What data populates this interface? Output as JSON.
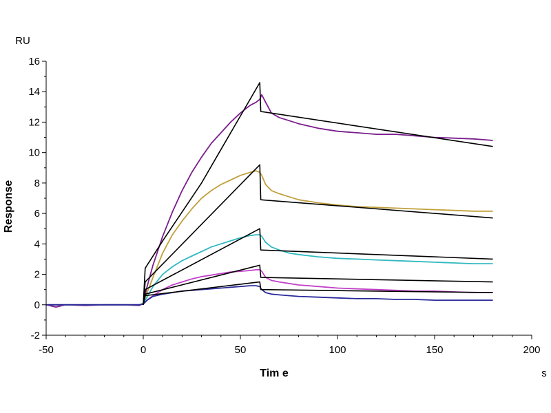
{
  "chart_data": {
    "type": "line",
    "xlabel": "Tim e",
    "ylabel": "Response",
    "x_unit": "s",
    "y_unit": "RU",
    "xlim": [
      -50,
      200
    ],
    "ylim": [
      -2,
      16
    ],
    "x_ticks": [
      -50,
      0,
      50,
      100,
      150,
      200
    ],
    "y_ticks": [
      -2,
      0,
      2,
      4,
      6,
      8,
      10,
      12,
      14,
      16
    ],
    "grid": false,
    "series": [
      {
        "color": "#7a1e8c",
        "kind": "measured",
        "x": [
          -50,
          -45,
          -40,
          -30,
          -20,
          -10,
          -2,
          0,
          2,
          5,
          10,
          15,
          20,
          25,
          30,
          35,
          40,
          45,
          50,
          55,
          58,
          60,
          61,
          63,
          66,
          70,
          75,
          80,
          90,
          100,
          110,
          120,
          130,
          140,
          150,
          160,
          170,
          180
        ],
        "y": [
          0,
          -0.15,
          0,
          -0.05,
          0,
          0,
          -0.05,
          0.1,
          1.2,
          2.6,
          4.5,
          6.1,
          7.5,
          8.7,
          9.7,
          10.6,
          11.3,
          12.0,
          12.6,
          13.1,
          13.3,
          13.5,
          13.8,
          13.3,
          12.6,
          12.3,
          12.1,
          11.9,
          11.6,
          11.4,
          11.3,
          11.2,
          11.2,
          11.1,
          11.0,
          10.95,
          10.9,
          10.8
        ]
      },
      {
        "color": "#c0a03c",
        "kind": "measured",
        "x": [
          -50,
          -40,
          -30,
          -20,
          -10,
          -2,
          0,
          2,
          5,
          10,
          15,
          20,
          25,
          30,
          35,
          40,
          45,
          50,
          55,
          58,
          60,
          61,
          63,
          66,
          70,
          75,
          80,
          90,
          100,
          110,
          120,
          130,
          140,
          150,
          160,
          170,
          180
        ],
        "y": [
          0,
          0,
          0,
          0,
          0,
          0,
          0.1,
          0.8,
          1.8,
          3.4,
          4.6,
          5.5,
          6.3,
          7.0,
          7.5,
          7.9,
          8.2,
          8.5,
          8.7,
          8.8,
          8.7,
          8.5,
          7.9,
          7.5,
          7.3,
          7.1,
          6.9,
          6.7,
          6.55,
          6.45,
          6.4,
          6.35,
          6.3,
          6.25,
          6.2,
          6.15,
          6.15
        ]
      },
      {
        "color": "#30b8c0",
        "kind": "measured",
        "x": [
          -50,
          -40,
          -30,
          -20,
          -10,
          -2,
          0,
          2,
          5,
          10,
          15,
          20,
          25,
          30,
          35,
          40,
          45,
          50,
          55,
          58,
          60,
          61,
          63,
          66,
          70,
          75,
          80,
          90,
          100,
          110,
          120,
          130,
          140,
          150,
          160,
          170,
          180
        ],
        "y": [
          0,
          0,
          0,
          0,
          0,
          0,
          0.1,
          0.5,
          1.2,
          2.0,
          2.5,
          2.9,
          3.2,
          3.5,
          3.8,
          4.0,
          4.2,
          4.4,
          4.55,
          4.6,
          4.6,
          4.5,
          4.1,
          3.8,
          3.6,
          3.4,
          3.3,
          3.15,
          3.05,
          3.0,
          2.95,
          2.9,
          2.85,
          2.8,
          2.75,
          2.7,
          2.7
        ]
      },
      {
        "color": "#c040c8",
        "kind": "measured",
        "x": [
          -50,
          -40,
          -30,
          -20,
          -10,
          -2,
          0,
          2,
          5,
          10,
          15,
          20,
          25,
          30,
          35,
          40,
          45,
          50,
          55,
          58,
          60,
          61,
          63,
          66,
          70,
          75,
          80,
          90,
          100,
          110,
          120,
          130,
          140,
          150,
          160,
          170,
          180
        ],
        "y": [
          0,
          0,
          0,
          0,
          0,
          0,
          0.05,
          0.3,
          0.6,
          1.0,
          1.3,
          1.5,
          1.7,
          1.85,
          1.95,
          2.05,
          2.15,
          2.2,
          2.25,
          2.3,
          2.3,
          2.2,
          1.8,
          1.6,
          1.5,
          1.4,
          1.3,
          1.2,
          1.1,
          1.05,
          1.0,
          0.95,
          0.9,
          0.9,
          0.85,
          0.8,
          0.8
        ]
      },
      {
        "color": "#2a2a9a",
        "kind": "measured",
        "x": [
          -50,
          -40,
          -30,
          -20,
          -10,
          -2,
          0,
          2,
          5,
          10,
          15,
          20,
          25,
          30,
          35,
          40,
          45,
          50,
          55,
          58,
          60,
          61,
          63,
          66,
          70,
          75,
          80,
          90,
          100,
          110,
          120,
          130,
          140,
          150,
          160,
          170,
          180
        ],
        "y": [
          0,
          0,
          0,
          0,
          0,
          0,
          0.05,
          0.3,
          0.55,
          0.7,
          0.8,
          0.9,
          0.95,
          1.0,
          1.05,
          1.1,
          1.15,
          1.2,
          1.25,
          1.25,
          1.2,
          1.0,
          0.8,
          0.7,
          0.65,
          0.6,
          0.55,
          0.5,
          0.45,
          0.4,
          0.4,
          0.35,
          0.35,
          0.3,
          0.3,
          0.3,
          0.3
        ]
      },
      {
        "color": "#000000",
        "kind": "fit",
        "x": [
          0,
          1,
          10,
          20,
          30,
          40,
          50,
          60,
          60.5,
          180
        ],
        "y": [
          0,
          2.4,
          4.2,
          6.1,
          8.0,
          10.2,
          12.4,
          14.6,
          12.7,
          10.4
        ]
      },
      {
        "color": "#000000",
        "kind": "fit",
        "x": [
          0,
          1,
          60,
          60.5,
          180
        ],
        "y": [
          0,
          1.5,
          9.2,
          6.9,
          5.7
        ]
      },
      {
        "color": "#000000",
        "kind": "fit",
        "x": [
          0,
          1,
          60,
          60.5,
          180
        ],
        "y": [
          0,
          1.0,
          5.0,
          3.6,
          3.0
        ]
      },
      {
        "color": "#000000",
        "kind": "fit",
        "x": [
          0,
          1,
          60,
          60.5,
          180
        ],
        "y": [
          0,
          0.7,
          2.6,
          1.8,
          1.5
        ]
      },
      {
        "color": "#000000",
        "kind": "fit",
        "x": [
          0,
          1,
          60,
          60.5,
          180
        ],
        "y": [
          0,
          0.6,
          1.5,
          1.0,
          0.8
        ]
      }
    ]
  }
}
